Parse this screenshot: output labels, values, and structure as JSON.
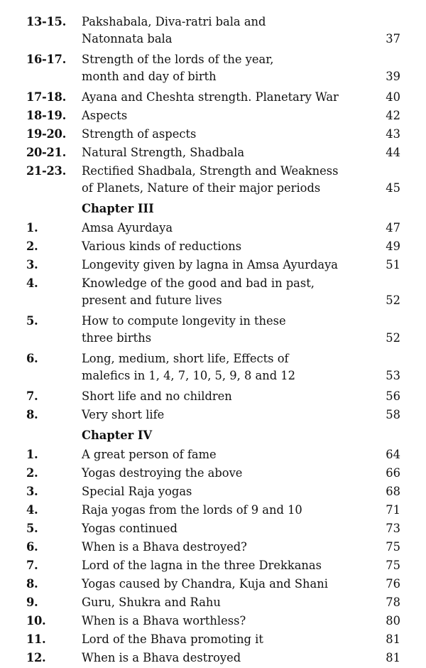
{
  "sections": [
    {
      "heading": "",
      "entries": [
        {
          "num": "13-15.",
          "lines": [
            "Pakshabala, Diva-ratri bala and",
            "Natonnata bala"
          ],
          "page": "37"
        },
        {
          "num": "16-17.",
          "lines": [
            "Strength of the lords of the year,",
            "month and day of birth"
          ],
          "page": "39"
        },
        {
          "num": "17-18.",
          "lines": [
            "Ayana and Cheshta strength. Planetary War"
          ],
          "page": "40"
        },
        {
          "num": "18-19.",
          "lines": [
            "Aspects"
          ],
          "page": "42"
        },
        {
          "num": "19-20.",
          "lines": [
            "Strength of aspects"
          ],
          "page": "43"
        },
        {
          "num": "20-21.",
          "lines": [
            "Natural Strength, Shadbala"
          ],
          "page": "44"
        },
        {
          "num": "21-23.",
          "lines": [
            "Rectified Shadbala, Strength and Weakness",
            "of Planets, Nature of their major periods"
          ],
          "page": "45"
        }
      ]
    },
    {
      "heading": "Chapter III",
      "entries": [
        {
          "num": "1.",
          "lines": [
            "Amsa Ayurdaya"
          ],
          "page": "47"
        },
        {
          "num": "2.",
          "lines": [
            "Various kinds of reductions"
          ],
          "page": "49"
        },
        {
          "num": "3.",
          "lines": [
            "Longevity given by lagna in Amsa Ayurdaya"
          ],
          "page": "51"
        },
        {
          "num": "4.",
          "lines": [
            "Knowledge of the good and bad in past,",
            "present and future lives"
          ],
          "page": "52"
        },
        {
          "num": "5.",
          "lines": [
            "How to compute longevity in these",
            "three births"
          ],
          "page": "52"
        },
        {
          "num": "6.",
          "lines": [
            "Long, medium, short life, Effects of",
            "malefics in 1, 4, 7, 10, 5, 9, 8 and 12"
          ],
          "page": "53"
        },
        {
          "num": "7.",
          "lines": [
            "Short life and no children"
          ],
          "page": "56"
        },
        {
          "num": "8.",
          "lines": [
            "Very short life"
          ],
          "page": "58"
        }
      ]
    },
    {
      "heading": "Chapter IV",
      "entries": [
        {
          "num": "1.",
          "lines": [
            "A great person of fame"
          ],
          "page": "64"
        },
        {
          "num": "2.",
          "lines": [
            "Yogas destroying the above"
          ],
          "page": "66"
        },
        {
          "num": "3.",
          "lines": [
            "Special Raja yogas"
          ],
          "page": "68"
        },
        {
          "num": "4.",
          "lines": [
            "Raja yogas from the lords of 9 and 10"
          ],
          "page": "71"
        },
        {
          "num": "5.",
          "lines": [
            "Yogas continued"
          ],
          "page": "73"
        },
        {
          "num": "6.",
          "lines": [
            "When is a Bhava destroyed?"
          ],
          "page": "75"
        },
        {
          "num": "7.",
          "lines": [
            "Lord of the lagna in the three Drekkanas"
          ],
          "page": "75"
        },
        {
          "num": "8.",
          "lines": [
            "Yogas caused by Chandra, Kuja and Shani"
          ],
          "page": "76"
        },
        {
          "num": "9.",
          "lines": [
            "Guru, Shukra and Rahu"
          ],
          "page": "78"
        },
        {
          "num": "10.",
          "lines": [
            "When is a Bhava worthless?"
          ],
          "page": "80"
        },
        {
          "num": "11.",
          "lines": [
            "Lord of the Bhava promoting it"
          ],
          "page": "81"
        },
        {
          "num": "12.",
          "lines": [
            "When is a Bhava destroyed"
          ],
          "page": "81"
        }
      ]
    }
  ]
}
